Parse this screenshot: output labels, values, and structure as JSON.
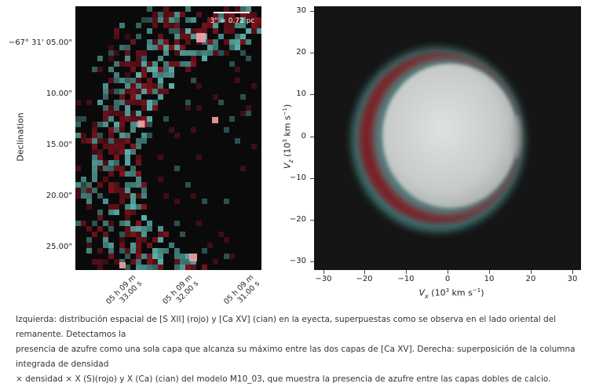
{
  "left_panel": {
    "scale_bar_label": "3\" = 0.72 pc",
    "dec_ticks": [
      "−67° 31' 05.00\"",
      "10.00\"",
      "15.00\"",
      "20.00\"",
      "25.00\""
    ],
    "dec_label": "Declination",
    "ra_ticks": [
      {
        "line1": "05 h 09 m",
        "line2": "33.00 s"
      },
      {
        "line1": "05 h 09 m",
        "line2": "32.00 s"
      },
      {
        "line1": "05 h 09 m",
        "line2": "31.00 s"
      }
    ],
    "colors": {
      "red": "#8a1420",
      "cyan": "#5fb9b3",
      "pink": "#f2a3a6",
      "background": "#0a0a0a"
    }
  },
  "right_panel": {
    "x_ticks": [
      "−30",
      "−20",
      "−10",
      "0",
      "10",
      "20",
      "30"
    ],
    "y_ticks": [
      "30",
      "20",
      "10",
      "0",
      "−10",
      "−20",
      "−30"
    ],
    "x_label_var": "V",
    "x_label_sub": "x",
    "x_label_units": " (10",
    "x_label_exp": "3",
    "x_label_tail": " km s",
    "x_label_tail_exp": "−1",
    "x_label_close": ")",
    "y_label_var": "V",
    "y_label_sub": "z",
    "y_label_units": " (10",
    "y_label_exp": "3",
    "y_label_tail": " km s",
    "y_label_tail_exp": "−1",
    "y_label_close": ")",
    "colors": {
      "red": "#8a1a22",
      "cyan": "#3f8f8c",
      "core": "#cfd3d1",
      "background": "#151515"
    }
  },
  "caption": {
    "line1": "Izquierda: distribución espacial de [S XII] (rojo) y [Ca XV] (cian) en la eyecta, superpuestas como se observa en el lado oriental del remanente. Detectamos la",
    "line2": "presencia de azufre como una sola capa que alcanza su máximo entre las dos capas de [Ca XV]. Derecha: superposición de la columna integrada de densidad",
    "line3": "× densidad × X (S)(rojo) y X (Ca) (cian) del modelo M10_03, que muestra la presencia de azufre entre las capas dobles de calcio."
  }
}
